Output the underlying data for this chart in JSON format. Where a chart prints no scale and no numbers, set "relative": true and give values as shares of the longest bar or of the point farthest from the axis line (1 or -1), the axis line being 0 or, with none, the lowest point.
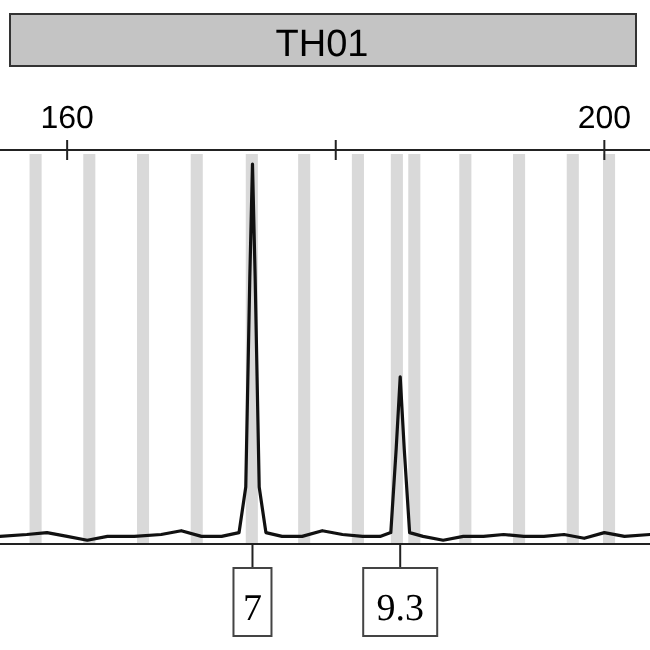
{
  "chart_data": {
    "type": "line",
    "title": "TH01",
    "relative": true,
    "xlim": [
      155,
      203.4
    ],
    "xticks": [
      160,
      {
        "value": 180,
        "label": null
      },
      200
    ],
    "series": [
      {
        "color": "#111111",
        "x": [
          155,
          157,
          158.5,
          160,
          161.5,
          163,
          165,
          167,
          168.5,
          170,
          171.5,
          172.8,
          173.3,
          173.6,
          173.8,
          174.0,
          174.3,
          174.8,
          176,
          177.5,
          179,
          180.5,
          182,
          183.3,
          184.1,
          184.5,
          184.8,
          185.1,
          185.5,
          186.5,
          188,
          189.5,
          191,
          192.5,
          194,
          195.5,
          197,
          198.5,
          200,
          201.5,
          203.4
        ],
        "values": [
          0.02,
          0.025,
          0.03,
          0.02,
          0.01,
          0.02,
          0.02,
          0.025,
          0.035,
          0.02,
          0.02,
          0.03,
          0.15,
          0.7,
          1,
          0.7,
          0.15,
          0.03,
          0.02,
          0.02,
          0.035,
          0.025,
          0.02,
          0.02,
          0.03,
          0.25,
          0.44,
          0.25,
          0.03,
          0.02,
          0.01,
          0.02,
          0.02,
          0.025,
          0.02,
          0.02,
          0.025,
          0.015,
          0.03,
          0.02,
          0.025
        ]
      }
    ],
    "bands": [
      {
        "axis": "x",
        "from": 157.2,
        "to": 158.1,
        "color": "#d9d9d9"
      },
      {
        "axis": "x",
        "from": 161.2,
        "to": 162.1,
        "color": "#d9d9d9"
      },
      {
        "axis": "x",
        "from": 165.2,
        "to": 166.1,
        "color": "#d9d9d9"
      },
      {
        "axis": "x",
        "from": 169.2,
        "to": 170.1,
        "color": "#d9d9d9"
      },
      {
        "axis": "x",
        "from": 173.3,
        "to": 174.2,
        "color": "#d9d9d9"
      },
      {
        "axis": "x",
        "from": 177.2,
        "to": 178.1,
        "color": "#d9d9d9"
      },
      {
        "axis": "x",
        "from": 181.2,
        "to": 182.1,
        "color": "#d9d9d9"
      },
      {
        "axis": "x",
        "from": 184.1,
        "to": 185.0,
        "color": "#d9d9d9"
      },
      {
        "axis": "x",
        "from": 185.4,
        "to": 186.3,
        "color": "#d9d9d9"
      },
      {
        "axis": "x",
        "from": 189.2,
        "to": 190.1,
        "color": "#d9d9d9"
      },
      {
        "axis": "x",
        "from": 193.2,
        "to": 194.1,
        "color": "#d9d9d9"
      },
      {
        "axis": "x",
        "from": 197.2,
        "to": 198.1,
        "color": "#d9d9d9"
      },
      {
        "axis": "x",
        "from": 199.9,
        "to": 200.8,
        "color": "#d9d9d9"
      }
    ],
    "annotations": [
      {
        "text": "7",
        "x": 173.8,
        "y": 0
      },
      {
        "text": "9.3",
        "x": 184.8,
        "y": 0
      }
    ]
  }
}
